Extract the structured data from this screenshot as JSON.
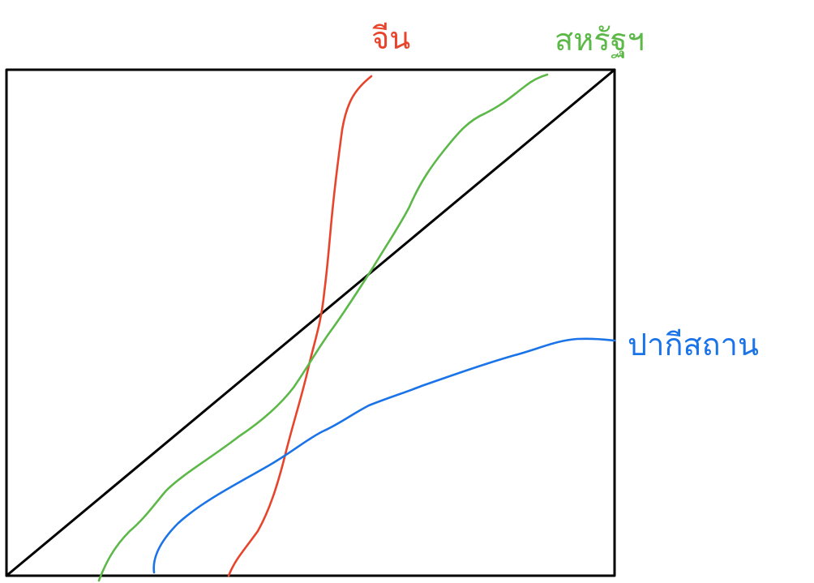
{
  "colors": {
    "frame": "#000000",
    "diagonal": "#000000",
    "red_curve": "#e8442c",
    "green_curve": "#5cb848",
    "blue_curve": "#1a73e8"
  },
  "labels": {
    "red": "จีน",
    "green": "สหรัฐฯ",
    "blue": "ปากีสถาน"
  }
}
